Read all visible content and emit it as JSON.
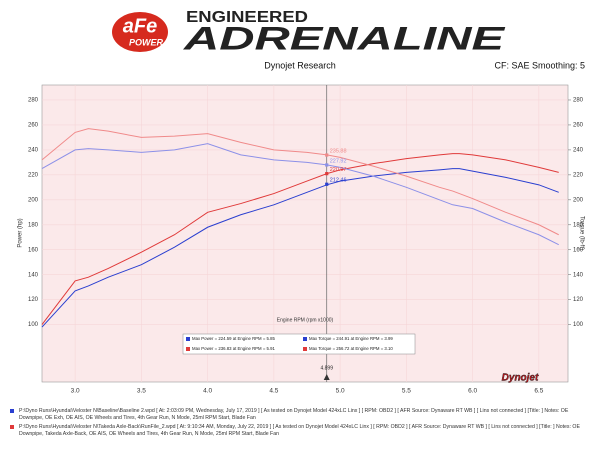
{
  "header": {
    "brand": "aFe",
    "brand_sub": "POWER",
    "line1": "ENGINEERED",
    "line2": "ADRENALINE"
  },
  "chart_data": {
    "type": "line",
    "title": "Dynojet Research",
    "subtitle": "CF: SAE Smoothing: 5",
    "ylabel": "Power (hp)",
    "y2label": "Torque (lb-ft)",
    "xlabel": "Engine RPM (rpm x1000)",
    "logo": "Dynojet",
    "grid": true,
    "xlim": [
      2.75,
      6.72
    ],
    "xticks": [
      {
        "value": 3,
        "label": "3.0"
      },
      3.5,
      {
        "value": 4,
        "label": "4.0"
      },
      4.5,
      {
        "value": 5,
        "label": "5.0"
      },
      5.5,
      {
        "value": 6,
        "label": "6.0"
      },
      6.5
    ],
    "ylim": [
      54,
      292
    ],
    "yticks": [
      100,
      120,
      140,
      160,
      180,
      200,
      220,
      240,
      260,
      280
    ],
    "y2lim": [
      54,
      292
    ],
    "y2ticks": [
      100,
      120,
      140,
      160,
      180,
      200,
      220,
      240,
      260,
      280
    ],
    "x": [
      2.75,
      3.0,
      3.1,
      3.25,
      3.5,
      3.75,
      4.0,
      4.25,
      4.5,
      4.75,
      4.9,
      5.0,
      5.25,
      5.5,
      5.75,
      5.85,
      5.9,
      6.0,
      6.25,
      6.5,
      6.65
    ],
    "series": [
      {
        "color": "#2a3fd0",
        "axis": "y",
        "values": [
          98,
          127,
          131,
          138,
          148,
          162,
          178,
          188,
          196,
          206,
          212,
          215,
          219,
          222,
          224,
          225,
          225,
          223,
          218,
          212,
          206
        ]
      },
      {
        "color": "#e03a3a",
        "axis": "y",
        "values": [
          100,
          135,
          138,
          145,
          158,
          172,
          190,
          197,
          205,
          215,
          221,
          224,
          229,
          233,
          236,
          237,
          237,
          236,
          232,
          226,
          222
        ]
      },
      {
        "color": "#8c90e8",
        "axis": "y2",
        "values": [
          225,
          240,
          241,
          240,
          238,
          240,
          245,
          236,
          232,
          230,
          228,
          226,
          219,
          210,
          200,
          196,
          195,
          193,
          182,
          172,
          164
        ]
      },
      {
        "color": "#f08a8a",
        "axis": "y2",
        "values": [
          232,
          254,
          257,
          255,
          250,
          251,
          253,
          246,
          240,
          238,
          236,
          234,
          227,
          219,
          210,
          207,
          205,
          201,
          190,
          180,
          172
        ]
      }
    ],
    "cursor": {
      "x": 4.899,
      "values": [
        235.88,
        227.92,
        220.97,
        212.46
      ],
      "colors": [
        "#f08a8a",
        "#8c90e8",
        "#e03a3a",
        "#2a3fd0"
      ]
    },
    "runs": [
      {
        "color": "#2a3fd0",
        "stats": [
          "Max Power = 224.59 at Engine RPM = 5.85",
          "Max Torque = 244.91 at Engine RPM = 3.99"
        ],
        "file": "P:\\Dyno Runs\\Hyundai\\Veloster N\\Baseline\\Baseline 2.wpd [ At: 2:03:09 PM, Wednesday, July 17, 2019 ] [ As tested on Dynojet Model 424xLC Linx ] [ RPM: OBD2 ] [ AFR Source: Dynaware RT WB ] [ Lins not connected ] [Title: ]  Notes: OE Downpipe, OE Exh, OE AIS, OE Wheels and Tires, 4th Gear Run, N Mode, 25ml RPM Start, Blade Fan"
      },
      {
        "color": "#e03a3a",
        "stats": [
          "Max Power = 236.83 at Engine RPM = 5.91",
          "Max Torque = 256.72 at Engine RPM = 3.10"
        ],
        "file": "P:\\Dyno Runs\\Hyundai\\Veloster N\\Takeda Axle-Back\\RunFile_2.wpd [ At: 9:10:34 AM, Monday, July 22, 2019 ] [ As tested on Dynojet Model 424xLC Linx ] [ RPM: OBD2 ] [ AFR Source: Dynaware RT WB ] [ Lins not connected ] [Title: ]  Notes: OE Downpipe, Takeda Axle-Back, OE AIS, OE Wheels and Tires, 4th Gear Run, N Mode, 25ml RPM Start, Blade Fan"
      }
    ]
  }
}
